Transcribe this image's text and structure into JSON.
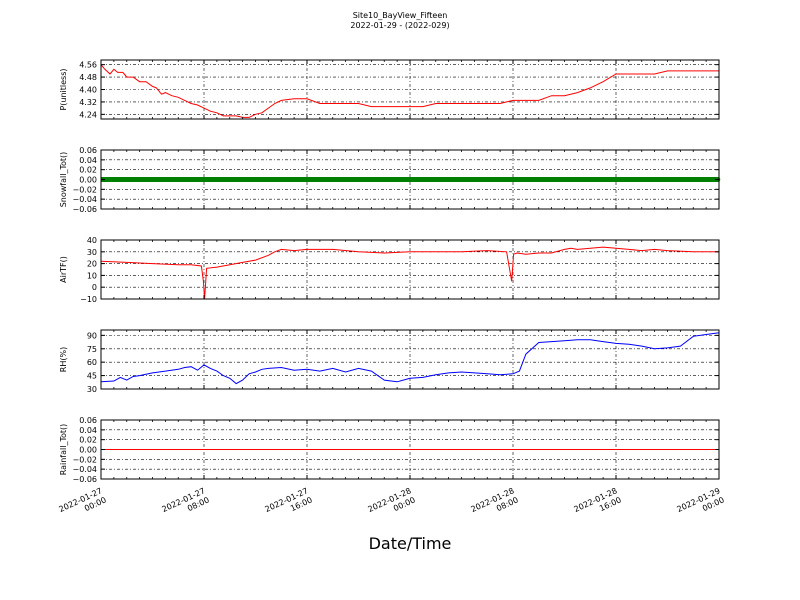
{
  "header": {
    "title": "Site10_BayView_Fifteen",
    "subtitle": "2022-01-29 - (2022-029)"
  },
  "xlabel": "Date/Time",
  "chart_data": [
    {
      "type": "line",
      "ylabel": "P(unitless)",
      "ylim": [
        4.21,
        4.59
      ],
      "yticks": [
        "4.56",
        "4.48",
        "4.40",
        "4.32",
        "4.24"
      ],
      "yticks_values": [
        4.56,
        4.48,
        4.4,
        4.32,
        4.24
      ],
      "grid": true,
      "series": [
        {
          "color": "#ff0000",
          "x": [
            0,
            0.3,
            0.7,
            1,
            1.3,
            1.7,
            2,
            2.5,
            3,
            3.5,
            4,
            4.3,
            4.7,
            5,
            5.5,
            6,
            6.5,
            7,
            7.5,
            8,
            8.5,
            9,
            9.5,
            10,
            10.5,
            11,
            11.5,
            12,
            12.5,
            13,
            13.5,
            14,
            15,
            16,
            17,
            18,
            19,
            20,
            21,
            22,
            23,
            24,
            25,
            26,
            26.5,
            27,
            28,
            29,
            30,
            31,
            31.5,
            32,
            33,
            33.5,
            34,
            35,
            36,
            37,
            38,
            39,
            40,
            41,
            42,
            43,
            44,
            45,
            46,
            47,
            48
          ],
          "y": [
            4.56,
            4.53,
            4.5,
            4.53,
            4.51,
            4.51,
            4.48,
            4.48,
            4.45,
            4.45,
            4.42,
            4.41,
            4.37,
            4.38,
            4.36,
            4.35,
            4.33,
            4.31,
            4.3,
            4.28,
            4.26,
            4.25,
            4.23,
            4.23,
            4.23,
            4.22,
            4.22,
            4.24,
            4.25,
            4.28,
            4.31,
            4.33,
            4.34,
            4.34,
            4.31,
            4.31,
            4.31,
            4.31,
            4.29,
            4.29,
            4.29,
            4.29,
            4.29,
            4.31,
            4.31,
            4.31,
            4.31,
            4.31,
            4.31,
            4.31,
            4.32,
            4.33,
            4.33,
            4.33,
            4.33,
            4.36,
            4.36,
            4.38,
            4.41,
            4.45,
            4.5,
            4.5,
            4.5,
            4.5,
            4.52,
            4.52,
            4.52,
            4.52,
            4.52
          ]
        }
      ]
    },
    {
      "type": "line",
      "ylabel": "Snowfall_Tot()",
      "ylim": [
        -0.06,
        0.06
      ],
      "yticks": [
        "0.06",
        "0.04",
        "0.02",
        "0.00",
        "−0.02",
        "−0.04",
        "−0.06"
      ],
      "yticks_values": [
        0.06,
        0.04,
        0.02,
        0.0,
        -0.02,
        -0.04,
        -0.06
      ],
      "grid": true,
      "series": [
        {
          "color": "#008000",
          "marker": true,
          "x": [
            0,
            48
          ],
          "y": [
            0.0,
            0.0
          ]
        }
      ]
    },
    {
      "type": "line",
      "ylabel": "AirTF()",
      "ylim": [
        -10,
        40
      ],
      "yticks": [
        "40",
        "30",
        "20",
        "10",
        "0",
        "−10"
      ],
      "yticks_values": [
        40,
        30,
        20,
        10,
        0,
        -10
      ],
      "grid": true,
      "series": [
        {
          "color": "#ff0000",
          "x": [
            0,
            2,
            4,
            6,
            7,
            7.8,
            7.95,
            8.05,
            8.2,
            9,
            10,
            11,
            12,
            13,
            13.5,
            14,
            15,
            16,
            17,
            18,
            20,
            22,
            24,
            26,
            28,
            30,
            31.5,
            31.9,
            32.05,
            32.3,
            33,
            34,
            35,
            36,
            36.5,
            37,
            38,
            39,
            40,
            41,
            42,
            43,
            44,
            46,
            48
          ],
          "y": [
            22,
            21,
            20,
            19,
            19,
            18,
            5,
            -10,
            16,
            17,
            19,
            21,
            23,
            27,
            30,
            32,
            31,
            32,
            32,
            32,
            30,
            29,
            30,
            30,
            30,
            31,
            30,
            5,
            28,
            29,
            28,
            29,
            29,
            32,
            33,
            32,
            33,
            34,
            33,
            32,
            31,
            32,
            31,
            30,
            30
          ]
        }
      ]
    },
    {
      "type": "line",
      "ylabel": "RH(%)",
      "ylim": [
        30,
        96
      ],
      "yticks": [
        "90",
        "75",
        "60",
        "45",
        "30"
      ],
      "yticks_values": [
        90,
        75,
        60,
        45,
        30
      ],
      "grid": true,
      "series": [
        {
          "color": "#0000ff",
          "x": [
            0,
            1,
            1.5,
            2,
            2.5,
            3,
            4,
            5,
            6,
            6.5,
            7,
            7.5,
            8,
            8.5,
            9,
            9.5,
            10,
            10.5,
            11,
            11.5,
            12,
            12.5,
            13,
            14,
            15,
            16,
            17,
            18,
            19,
            20,
            21,
            22,
            23,
            24,
            25,
            26,
            27,
            28,
            29,
            30,
            31,
            32,
            32.5,
            33,
            34,
            35,
            36,
            37,
            38,
            39,
            40,
            41,
            42,
            43,
            44,
            45,
            46,
            47,
            48
          ],
          "y": [
            38,
            39,
            43,
            40,
            44,
            45,
            48,
            50,
            52,
            54,
            55,
            51,
            57,
            53,
            50,
            45,
            42,
            36,
            40,
            47,
            49,
            52,
            53,
            54,
            51,
            52,
            50,
            53,
            49,
            53,
            50,
            40,
            38,
            42,
            43,
            46,
            48,
            49,
            48,
            47,
            46,
            47,
            50,
            69,
            82,
            83,
            84,
            85,
            85,
            83,
            81,
            80,
            78,
            75,
            76,
            78,
            89,
            91,
            93
          ]
        }
      ]
    },
    {
      "type": "line",
      "ylabel": "Rainfall_Tot()",
      "ylim": [
        -0.06,
        0.06
      ],
      "yticks": [
        "0.06",
        "0.04",
        "0.02",
        "0.00",
        "−0.02",
        "−0.04",
        "−0.06"
      ],
      "yticks_values": [
        0.06,
        0.04,
        0.02,
        0.0,
        -0.02,
        -0.04,
        -0.06
      ],
      "grid": true,
      "series": [
        {
          "color": "#ff0000",
          "x": [
            0,
            48
          ],
          "y": [
            0.0,
            0.0
          ]
        }
      ]
    }
  ],
  "xaxis": {
    "range_hours": [
      0,
      48
    ],
    "tick_hours": [
      0,
      8,
      16,
      24,
      32,
      40,
      48
    ],
    "ticks": [
      [
        "2022-01-27",
        "00:00"
      ],
      [
        "2022-01-27",
        "08:00"
      ],
      [
        "2022-01-27",
        "16:00"
      ],
      [
        "2022-01-28",
        "00:00"
      ],
      [
        "2022-01-28",
        "08:00"
      ],
      [
        "2022-01-28",
        "16:00"
      ],
      [
        "2022-01-29",
        "00:00"
      ]
    ]
  }
}
